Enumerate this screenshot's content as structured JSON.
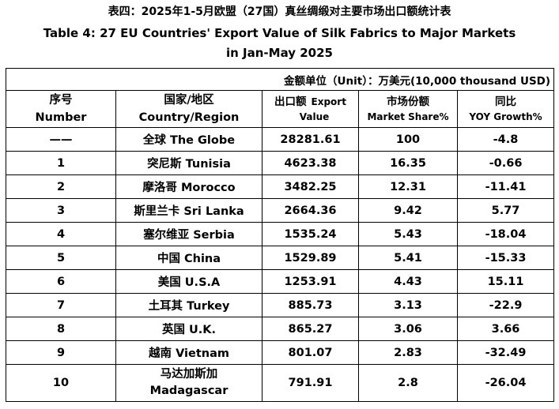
{
  "title": {
    "zh": "表四：2025年1-5月欧盟（27国）真丝绸缎对主要市场出口额统计表",
    "en_line1": "Table 4: 27 EU Countries' Export Value of Silk Fabrics to Major Markets",
    "en_line2": "in Jan-May 2025"
  },
  "unit": "金额单位（Unit）：万美元(10,000 thousand USD)",
  "headers": {
    "number_zh": "序号",
    "number_en": "Number",
    "country_zh": "国家/地区",
    "country_en": "Country/Region",
    "export_zh": "出口额",
    "export_en1": "Export",
    "export_en2": "Value",
    "share_zh": "市场份额",
    "share_en": "Market Share%",
    "growth_zh": "同比",
    "growth_en": "YOY Growth%"
  },
  "rows": [
    {
      "number": "——",
      "country": "全球 The Globe",
      "export": "28281.61",
      "share": "100",
      "growth": "-4.8"
    },
    {
      "number": "1",
      "country": "突尼斯 Tunisia",
      "export": "4623.38",
      "share": "16.35",
      "growth": "-0.66"
    },
    {
      "number": "2",
      "country": "摩洛哥 Morocco",
      "export": "3482.25",
      "share": "12.31",
      "growth": "-11.41"
    },
    {
      "number": "3",
      "country": "斯里兰卡 Sri Lanka",
      "export": "2664.36",
      "share": "9.42",
      "growth": "5.77"
    },
    {
      "number": "4",
      "country": "塞尔维亚 Serbia",
      "export": "1535.24",
      "share": "5.43",
      "growth": "-18.04"
    },
    {
      "number": "5",
      "country": "中国 China",
      "export": "1529.89",
      "share": "5.41",
      "growth": "-15.33"
    },
    {
      "number": "6",
      "country": "美国 U.S.A",
      "export": "1253.91",
      "share": "4.43",
      "growth": "15.11"
    },
    {
      "number": "7",
      "country": "土耳其 Turkey",
      "export": "885.73",
      "share": "3.13",
      "growth": "-22.9"
    },
    {
      "number": "8",
      "country": "英国 U.K.",
      "export": "865.27",
      "share": "3.06",
      "growth": "3.66"
    },
    {
      "number": "9",
      "country": "越南 Vietnam",
      "export": "801.07",
      "share": "2.83",
      "growth": "-32.49"
    }
  ],
  "last_row": {
    "number": "10",
    "country_zh": "马达加斯加",
    "country_en": "Madagascar",
    "export": "791.91",
    "share": "2.8",
    "growth": "-26.04"
  }
}
